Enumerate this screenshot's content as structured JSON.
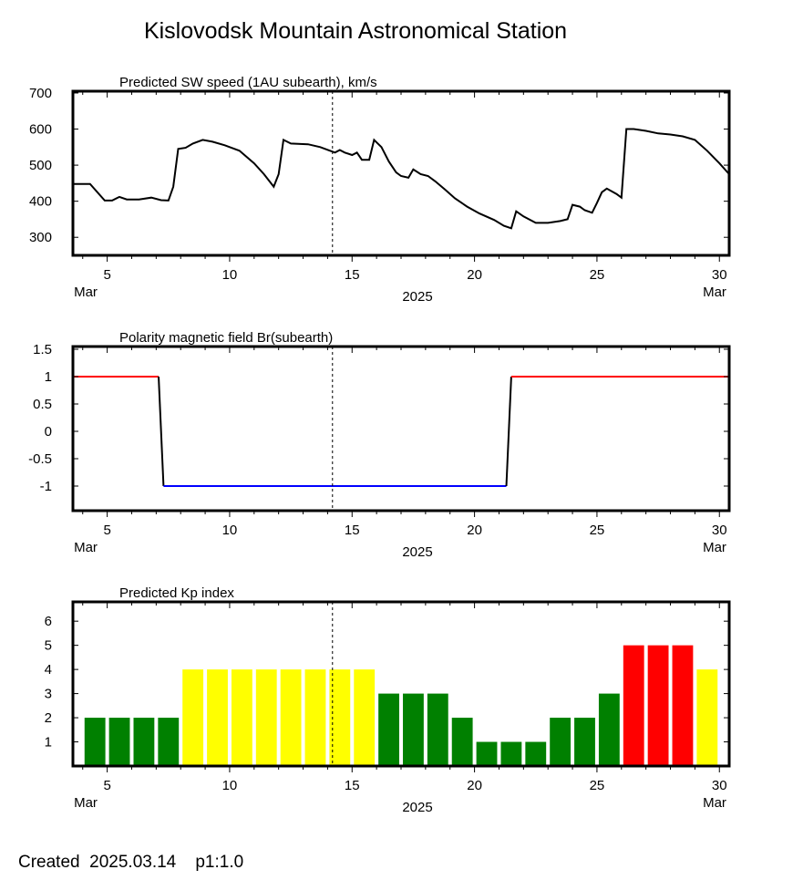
{
  "title": "Kislovodsk Mountain Astronomical Station",
  "footer": "Created  2025.03.14    p1:1.0",
  "x_axis": {
    "year_label": "2025",
    "month_label": "Mar",
    "xlim": [
      3.6,
      30.4
    ],
    "ticks": [
      5,
      10,
      15,
      20,
      25,
      30
    ],
    "current_day": 14.2
  },
  "chart_data": [
    {
      "type": "line",
      "title": "Predicted SW speed (1AU subearth), km/s",
      "ylim": [
        250,
        705
      ],
      "yticks": [
        300,
        400,
        500,
        600,
        700
      ],
      "color": "#000000",
      "x": [
        3.6,
        4.3,
        4.9,
        5.2,
        5.5,
        5.8,
        6.3,
        6.8,
        7.2,
        7.5,
        7.7,
        7.9,
        8.2,
        8.5,
        8.9,
        9.3,
        9.8,
        10.4,
        11.0,
        11.4,
        11.8,
        12.0,
        12.2,
        12.5,
        13.2,
        13.7,
        14.1,
        14.3,
        14.5,
        14.7,
        15.0,
        15.2,
        15.4,
        15.7,
        15.9,
        16.2,
        16.5,
        16.8,
        17.0,
        17.3,
        17.5,
        17.8,
        18.1,
        18.4,
        18.8,
        19.2,
        19.7,
        20.2,
        20.8,
        21.2,
        21.5,
        21.7,
        22.0,
        22.5,
        23.0,
        23.5,
        23.8,
        24.0,
        24.3,
        24.5,
        24.8,
        25.0,
        25.2,
        25.4,
        25.8,
        26.0,
        26.2,
        26.5,
        27.0,
        27.5,
        28.0,
        28.5,
        29.0,
        29.5,
        30.0,
        30.4
      ],
      "y": [
        448,
        448,
        402,
        402,
        412,
        405,
        405,
        410,
        403,
        402,
        440,
        545,
        548,
        560,
        570,
        565,
        555,
        540,
        505,
        475,
        440,
        475,
        570,
        560,
        558,
        550,
        540,
        535,
        542,
        535,
        528,
        535,
        515,
        515,
        570,
        550,
        510,
        480,
        470,
        465,
        488,
        475,
        470,
        455,
        432,
        408,
        385,
        366,
        348,
        332,
        325,
        372,
        358,
        340,
        340,
        345,
        350,
        390,
        385,
        375,
        368,
        395,
        425,
        435,
        420,
        410,
        600,
        600,
        595,
        588,
        585,
        580,
        570,
        540,
        505,
        475
      ]
    },
    {
      "type": "line",
      "title": "Polarity magnetic field  Br(subearth)",
      "ylim": [
        -1.45,
        1.55
      ],
      "yticks": [
        1.5,
        1,
        0.5,
        0,
        -0.5,
        -1
      ],
      "ytick_labels": [
        "1.5",
        "1",
        "0.5",
        "0",
        "-0.5",
        "-1"
      ],
      "segments": [
        {
          "x": [
            3.6,
            7.1
          ],
          "y": [
            1,
            1
          ],
          "color": "#ff0000"
        },
        {
          "x": [
            7.1,
            7.3
          ],
          "y": [
            1,
            -1
          ],
          "color": "#000000"
        },
        {
          "x": [
            7.3,
            21.3
          ],
          "y": [
            -1,
            -1
          ],
          "color": "#0000ff"
        },
        {
          "x": [
            21.3,
            21.5
          ],
          "y": [
            -1,
            1
          ],
          "color": "#000000"
        },
        {
          "x": [
            21.5,
            30.4
          ],
          "y": [
            1,
            1
          ],
          "color": "#ff0000"
        }
      ]
    },
    {
      "type": "bar",
      "title": "Predicted Kp index",
      "ylim": [
        0,
        6.8
      ],
      "yticks": [
        1,
        2,
        3,
        4,
        5,
        6
      ],
      "bar_width": 0.85,
      "x": [
        4.5,
        5.5,
        6.5,
        7.5,
        8.5,
        9.5,
        10.5,
        11.5,
        12.5,
        13.5,
        14.5,
        15.5,
        16.5,
        17.5,
        18.5,
        19.5,
        20.5,
        21.5,
        22.5,
        23.5,
        24.5,
        25.5,
        26.5,
        27.5,
        28.5,
        29.5
      ],
      "values": [
        2,
        2,
        2,
        2,
        4,
        4,
        4,
        4,
        4,
        4,
        4,
        4,
        3,
        3,
        3,
        2,
        1,
        1,
        1,
        2,
        2,
        3,
        5,
        5,
        5,
        4
      ],
      "colors": [
        "#008000",
        "#008000",
        "#008000",
        "#008000",
        "#ffff00",
        "#ffff00",
        "#ffff00",
        "#ffff00",
        "#ffff00",
        "#ffff00",
        "#ffff00",
        "#ffff00",
        "#008000",
        "#008000",
        "#008000",
        "#008000",
        "#008000",
        "#008000",
        "#008000",
        "#008000",
        "#008000",
        "#008000",
        "#ff0000",
        "#ff0000",
        "#ff0000",
        "#ffff00"
      ]
    }
  ]
}
